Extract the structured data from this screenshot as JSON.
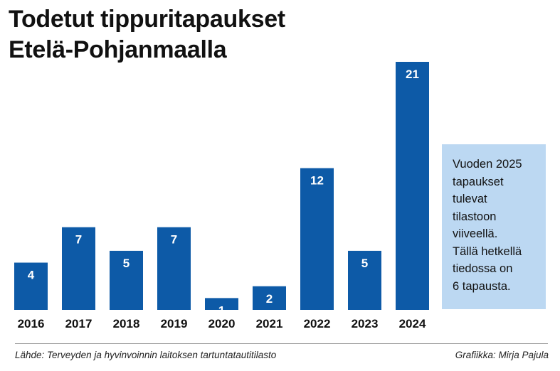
{
  "title": [
    "Todetut tippuritapaukset",
    "Etelä-Pohjanmaalla"
  ],
  "chart_data": {
    "type": "bar",
    "title": "Todetut tippuritapaukset Etelä-Pohjanmaalla",
    "categories": [
      "2016",
      "2017",
      "2018",
      "2019",
      "2020",
      "2021",
      "2022",
      "2023",
      "2024"
    ],
    "values": [
      4,
      7,
      5,
      7,
      1,
      2,
      12,
      5,
      21
    ],
    "xlabel": "",
    "ylabel": "",
    "ylim": [
      0,
      21
    ],
    "grid": false,
    "data_labels": true,
    "bar_color": "#0d5aa7"
  },
  "note": {
    "lines": [
      "Vuoden 2025",
      "tapaukset",
      "tulevat",
      "tilastoon",
      "viiveellä.",
      "Tällä hetkellä",
      "tiedossa on",
      "6 tapausta."
    ],
    "background": "#bcd8f2"
  },
  "footer": {
    "source": "Lähde: Terveyden ja hyvinvoinnin laitoksen tartuntatautitilasto",
    "credit": "Grafiikka: Mirja Pajula"
  }
}
